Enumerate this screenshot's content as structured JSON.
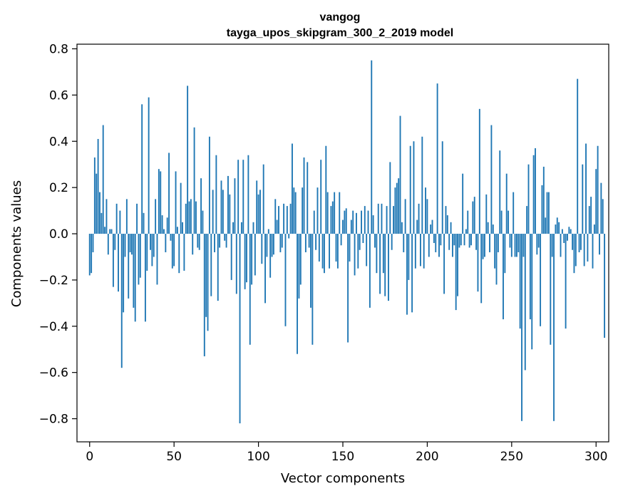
{
  "chart_data": {
    "type": "bar",
    "title": "vangog",
    "subtitle": "tayga_upos_skipgram_300_2_2019 model",
    "xlabel": "Vector components",
    "ylabel": "Components values",
    "xlim": [
      -7.5,
      307.5
    ],
    "ylim": [
      -0.9,
      0.82
    ],
    "xticks": [
      0,
      50,
      100,
      150,
      200,
      250,
      300
    ],
    "xtick_labels": [
      "0",
      "50",
      "100",
      "150",
      "200",
      "250",
      "300"
    ],
    "yticks": [
      -0.8,
      -0.6,
      -0.4,
      -0.2,
      0.0,
      0.2,
      0.4,
      0.6,
      0.8
    ],
    "ytick_labels": [
      "−0.8",
      "−0.6",
      "−0.4",
      "−0.2",
      "0.0",
      "0.2",
      "0.4",
      "0.6",
      "0.8"
    ],
    "bar_color": "#1f77b4",
    "series": [
      {
        "name": "vangog",
        "x_start": 0,
        "values": [
          -0.18,
          -0.17,
          -0.08,
          0.33,
          0.26,
          0.41,
          0.18,
          0.09,
          0.47,
          0.03,
          0.15,
          -0.09,
          0.02,
          0.02,
          -0.23,
          -0.07,
          0.13,
          -0.25,
          0.1,
          -0.58,
          -0.34,
          -0.1,
          0.15,
          -0.28,
          -0.08,
          -0.09,
          -0.32,
          -0.38,
          0.13,
          -0.22,
          -0.19,
          0.56,
          0.09,
          -0.38,
          -0.16,
          0.59,
          -0.07,
          -0.14,
          -0.1,
          0.15,
          -0.22,
          0.28,
          0.27,
          0.08,
          0.02,
          -0.08,
          0.07,
          0.35,
          -0.03,
          -0.15,
          -0.14,
          0.27,
          0.03,
          -0.17,
          0.22,
          0.05,
          -0.16,
          0.13,
          0.64,
          0.14,
          0.15,
          -0.09,
          0.46,
          0.14,
          -0.06,
          -0.07,
          0.24,
          0.1,
          -0.53,
          -0.36,
          -0.42,
          0.42,
          -0.27,
          0.19,
          -0.08,
          0.34,
          -0.29,
          -0.06,
          0.23,
          0.19,
          -0.03,
          -0.06,
          0.25,
          0.17,
          -0.2,
          0.05,
          0.24,
          -0.26,
          0.32,
          -0.82,
          0.05,
          0.32,
          -0.24,
          -0.21,
          0.34,
          -0.48,
          -0.22,
          0.05,
          -0.18,
          0.23,
          0.17,
          0.19,
          -0.13,
          0.3,
          -0.3,
          -0.1,
          0.02,
          -0.19,
          -0.1,
          -0.09,
          0.15,
          0.06,
          0.12,
          -0.08,
          -0.06,
          0.13,
          -0.4,
          0.12,
          -0.02,
          0.13,
          0.39,
          0.2,
          0.18,
          -0.52,
          -0.28,
          -0.22,
          0.2,
          0.33,
          -0.08,
          0.31,
          -0.06,
          -0.32,
          -0.48,
          0.1,
          -0.07,
          0.2,
          -0.12,
          0.32,
          -0.15,
          -0.17,
          0.38,
          0.18,
          -0.15,
          0.12,
          0.14,
          0.18,
          -0.12,
          -0.15,
          0.18,
          -0.05,
          0.06,
          0.1,
          0.11,
          -0.47,
          -0.12,
          0.06,
          0.1,
          -0.18,
          0.09,
          -0.15,
          -0.07,
          0.1,
          -0.04,
          0.12,
          -0.14,
          0.1,
          -0.32,
          0.75,
          0.08,
          -0.06,
          -0.17,
          0.13,
          -0.26,
          0.13,
          -0.17,
          -0.27,
          0.12,
          -0.29,
          0.31,
          -0.07,
          0.12,
          0.2,
          0.22,
          0.24,
          0.51,
          0.05,
          -0.08,
          0.15,
          -0.35,
          -0.2,
          0.38,
          -0.34,
          0.4,
          -0.15,
          0.06,
          0.13,
          -0.14,
          0.42,
          -0.15,
          0.2,
          0.15,
          -0.1,
          0.04,
          0.06,
          -0.04,
          -0.08,
          0.65,
          -0.1,
          -0.05,
          0.4,
          -0.26,
          0.12,
          0.08,
          -0.07,
          0.05,
          -0.1,
          -0.05,
          -0.33,
          -0.27,
          -0.06,
          -0.05,
          0.26,
          -0.05,
          0.02,
          0.1,
          -0.06,
          -0.05,
          0.14,
          0.16,
          -0.07,
          -0.25,
          0.54,
          -0.3,
          -0.11,
          -0.1,
          0.17,
          0.05,
          -0.08,
          0.47,
          0.04,
          -0.15,
          -0.22,
          -0.08,
          0.36,
          0.1,
          -0.37,
          -0.17,
          0.26,
          0.1,
          -0.06,
          -0.1,
          0.18,
          -0.1,
          -0.1,
          -0.08,
          -0.41,
          -0.81,
          -0.1,
          -0.59,
          0.12,
          0.3,
          -0.37,
          -0.5,
          0.34,
          0.37,
          -0.09,
          -0.06,
          -0.4,
          0.21,
          0.29,
          0.07,
          0.18,
          0.18,
          -0.48,
          -0.1,
          -0.81,
          0.04,
          0.07,
          0.05,
          -0.1,
          0.02,
          -0.04,
          -0.41,
          -0.03,
          0.03,
          0.02,
          -0.07,
          -0.17,
          -0.14,
          0.67,
          -0.08,
          -0.07,
          0.3,
          -0.14,
          0.39,
          -0.12,
          0.12,
          0.16,
          -0.15,
          0.04,
          0.28,
          0.38,
          -0.09,
          0.22,
          0.15,
          -0.45
        ]
      }
    ]
  }
}
